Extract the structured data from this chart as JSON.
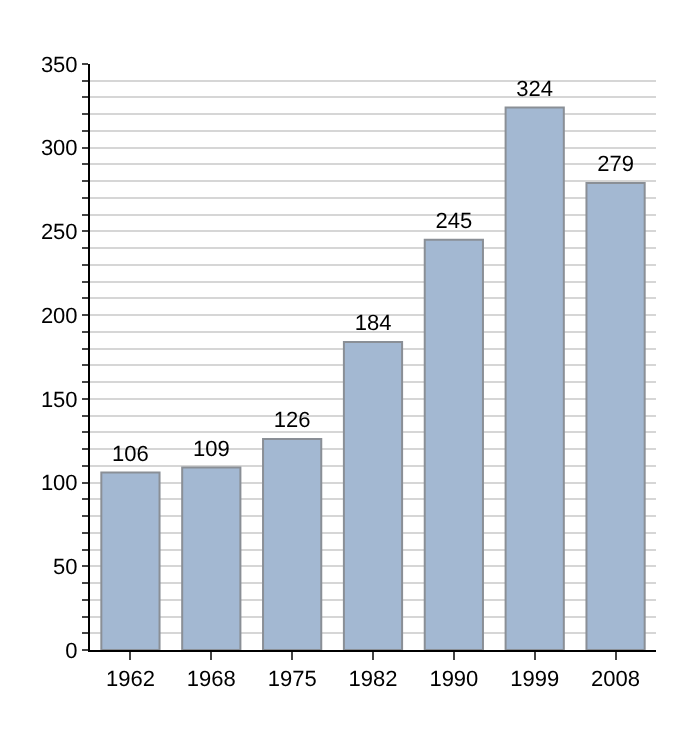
{
  "chart_data": {
    "type": "bar",
    "categories": [
      "1962",
      "1968",
      "1975",
      "1982",
      "1990",
      "1999",
      "2008"
    ],
    "values": [
      106,
      109,
      126,
      184,
      245,
      324,
      279
    ],
    "color": "#a3b8d2",
    "data_labels": true,
    "grid": "y",
    "ylim": [
      0,
      350
    ],
    "yticks": [
      0,
      {
        "value": 10,
        "label": null
      },
      {
        "value": 20,
        "label": null
      },
      {
        "value": 30,
        "label": null
      },
      {
        "value": 40,
        "label": null
      },
      50,
      {
        "value": 60,
        "label": null
      },
      {
        "value": 70,
        "label": null
      },
      {
        "value": 80,
        "label": null
      },
      {
        "value": 90,
        "label": null
      },
      100,
      {
        "value": 110,
        "label": null
      },
      {
        "value": 120,
        "label": null
      },
      {
        "value": 130,
        "label": null
      },
      {
        "value": 140,
        "label": null
      },
      150,
      {
        "value": 160,
        "label": null
      },
      {
        "value": 170,
        "label": null
      },
      {
        "value": 180,
        "label": null
      },
      {
        "value": 190,
        "label": null
      },
      200,
      {
        "value": 210,
        "label": null
      },
      {
        "value": 220,
        "label": null
      },
      {
        "value": 230,
        "label": null
      },
      {
        "value": 240,
        "label": null
      },
      250,
      {
        "value": 260,
        "label": null
      },
      {
        "value": 270,
        "label": null
      },
      {
        "value": 280,
        "label": null
      },
      {
        "value": 290,
        "label": null
      },
      300,
      {
        "value": 310,
        "label": null
      },
      {
        "value": 320,
        "label": null
      },
      {
        "value": 330,
        "label": null
      },
      {
        "value": 340,
        "label": null
      },
      350
    ]
  }
}
